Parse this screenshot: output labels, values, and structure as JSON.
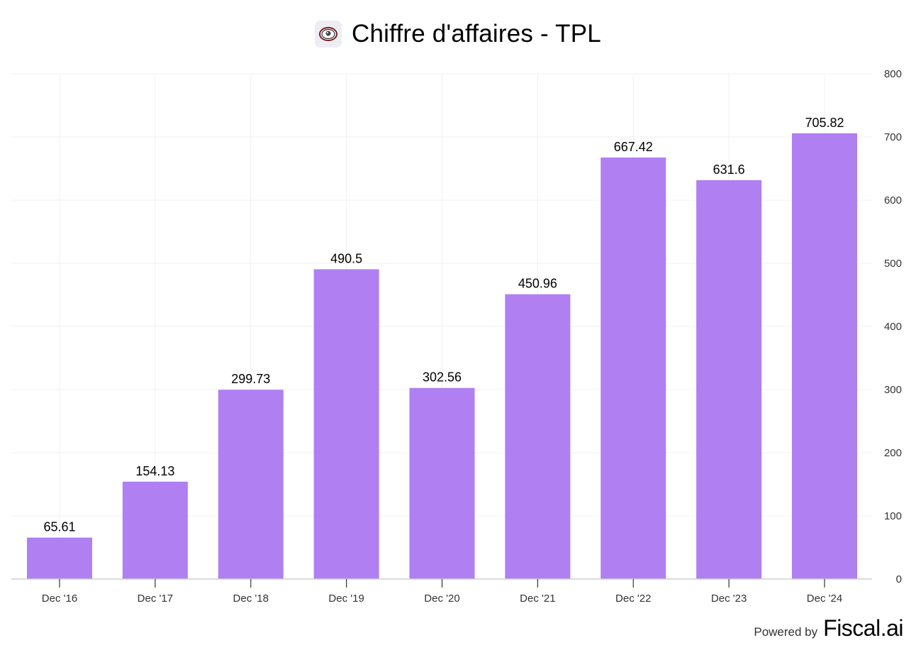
{
  "header": {
    "title": "Chiffre d'affaires - TPL"
  },
  "footer": {
    "powered_label": "Powered by",
    "brand": "Fiscal.ai"
  },
  "colors": {
    "bar": "#b07ff2",
    "grid": "#f0f0f0",
    "axis": "#d0d0d0",
    "tick_text": "#333333"
  },
  "chart_data": {
    "type": "bar",
    "title": "Chiffre d'affaires - TPL",
    "categories": [
      "Dec '16",
      "Dec '17",
      "Dec '18",
      "Dec '19",
      "Dec '20",
      "Dec '21",
      "Dec '22",
      "Dec '23",
      "Dec '24"
    ],
    "values": [
      65.61,
      154.13,
      299.73,
      490.5,
      302.56,
      450.96,
      667.42,
      631.6,
      705.82
    ],
    "value_labels": [
      "65.61",
      "154.13",
      "299.73",
      "490.5",
      "302.56",
      "450.96",
      "667.42",
      "631.6",
      "705.82"
    ],
    "ylim": [
      0,
      800
    ],
    "yticks": [
      0,
      100,
      200,
      300,
      400,
      500,
      600,
      700,
      800
    ],
    "y_axis_side": "right",
    "grid": true,
    "legend": "none"
  }
}
